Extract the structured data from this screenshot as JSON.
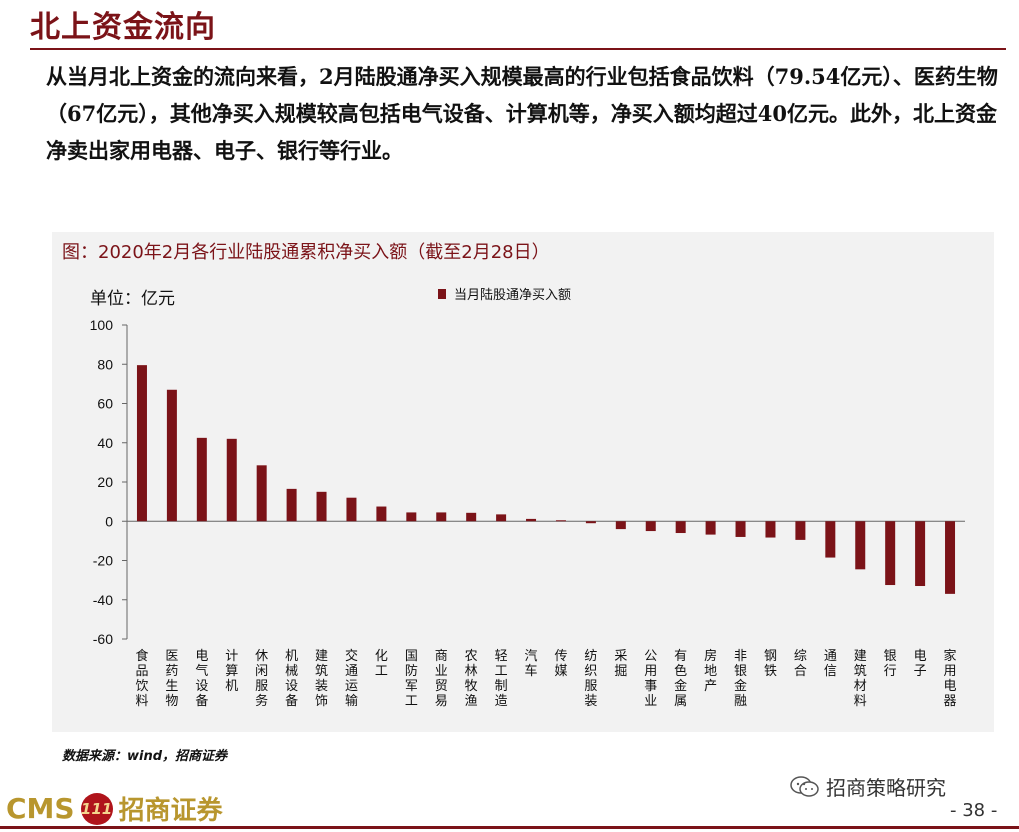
{
  "header": {
    "title": "北上资金流向",
    "paragraph": "从当月北上资金的流向来看，2月陆股通净买入规模最高的行业包括食品饮料（79.54亿元）、医药生物（67亿元），其他净买入规模较高包括电气设备、计算机等，净买入额均超过40亿元。此外，北上资金净卖出家用电器、电子、银行等行业。"
  },
  "chart_panel": {
    "title": "图：2020年2月各行业陆股通累积净买入额（截至2月28日）",
    "unit": "单位：亿元",
    "source": "数据来源：wind，招商证券"
  },
  "chart_data": {
    "type": "bar",
    "title": "图：2020年2月各行业陆股通累积净买入额（截至2月28日）",
    "ylabel": "单位：亿元",
    "xlabel": "",
    "ylim": [
      -60,
      100
    ],
    "yticks": [
      "100",
      "80",
      "60",
      "40",
      "20",
      "0",
      "-20",
      "-40",
      "-60"
    ],
    "legend_position": "top-center",
    "grid": false,
    "color": "#7b1318",
    "categories": [
      "食品饮料",
      "医药生物",
      "电气设备",
      "计算机",
      "休闲服务",
      "机械设备",
      "建筑装饰",
      "交通运输",
      "化工",
      "国防军工",
      "商业贸易",
      "农林牧渔",
      "轻工制造",
      "汽车",
      "传媒",
      "纺织服装",
      "采掘",
      "公用事业",
      "有色金属",
      "房地产",
      "非银金融",
      "钢铁",
      "综合",
      "通信",
      "建筑材料",
      "银行",
      "电子",
      "家用电器"
    ],
    "series": [
      {
        "name": "当月陆股通净买入额",
        "values": [
          79.54,
          67,
          42.5,
          42,
          28.5,
          16.5,
          15,
          12,
          7.5,
          4.5,
          4.5,
          4.3,
          3.5,
          1.2,
          0.5,
          -1,
          -4,
          -5,
          -6,
          -6.8,
          -8,
          -8.3,
          -9.5,
          -18.5,
          -24.5,
          -32.5,
          -33,
          -37
        ]
      }
    ]
  },
  "footer": {
    "logo_cms": "CMS",
    "logo_mark": "111",
    "logo_cn": "招商证券",
    "wechat_name": "招商策略研究",
    "wechat_icon": "wechat-icon",
    "page_number": "- 38 -"
  },
  "colors": {
    "accent": "#7b1318",
    "gold": "#b8962e",
    "panel_bg": "#f2f2f2"
  }
}
